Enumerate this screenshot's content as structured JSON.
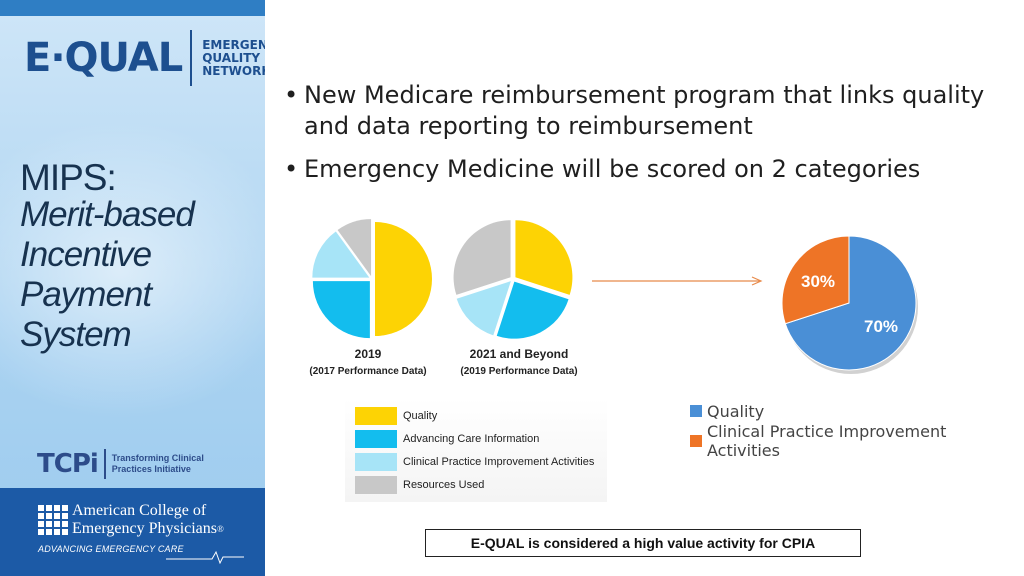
{
  "sidebar": {
    "logo": {
      "main": "E·QUAL",
      "line1": "EMERGENCY",
      "line2": "QUALITY",
      "line3": "NETWORK"
    },
    "title": "MIPS:",
    "subtitle": [
      "Merit-based",
      "Incentive",
      "Payment",
      "System"
    ],
    "tcpi": {
      "name": "TCPi",
      "line1": "Transforming Clinical",
      "line2": "Practices Initiative"
    },
    "acep": {
      "line1": "American College of",
      "line2": "Emergency Physicians",
      "reg": "®",
      "tagline": "ADVANCING EMERGENCY CARE"
    }
  },
  "bullets": [
    "New Medicare reimbursement program that links quality and data reporting to reimbursement",
    "Emergency Medicine will be scored on 2 categories"
  ],
  "bullet_glyph": "•",
  "colors": {
    "quality": "#fdd304",
    "aci": "#13bdee",
    "cpia": "#a7e4f7",
    "resources": "#c8c8c8",
    "pie_blue": "#4a8fd6",
    "pie_orange": "#ee7426",
    "arrow": "#e88a4a"
  },
  "chart_data": [
    {
      "type": "pie",
      "title": "2019",
      "subtitle": "(2017 Performance Data)",
      "categories": [
        "Quality",
        "Advancing Care Information",
        "Clinical Practice Improvement Activities",
        "Resources Used"
      ],
      "values": [
        50,
        25,
        15,
        10
      ]
    },
    {
      "type": "pie",
      "title": "2021 and Beyond",
      "subtitle": "(2019 Performance Data)",
      "categories": [
        "Quality",
        "Advancing Care Information",
        "Clinical Practice Improvement Activities",
        "Resources Used"
      ],
      "values": [
        30,
        25,
        15,
        30
      ]
    },
    {
      "type": "pie",
      "title": "",
      "categories": [
        "Quality",
        "Clinical Practice Improvement Activities"
      ],
      "values": [
        70,
        30
      ],
      "data_labels": [
        "70%",
        "30%"
      ]
    }
  ],
  "legend_left": [
    "Quality",
    "Advancing Care Information",
    "Clinical Practice Improvement Activities",
    "Resources Used"
  ],
  "legend_right": [
    "Quality",
    "Clinical Practice Improvement Activities"
  ],
  "note": "E-QUAL is considered a high value activity for CPIA"
}
